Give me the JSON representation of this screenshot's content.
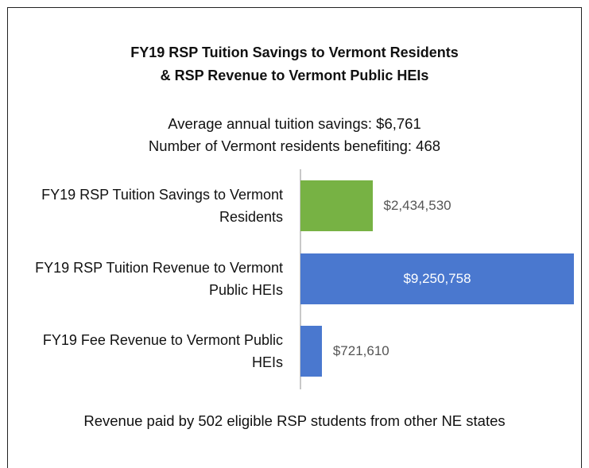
{
  "chart_data": {
    "type": "bar",
    "orientation": "horizontal",
    "title": [
      "FY19 RSP Tuition Savings to Vermont Residents",
      "& RSP Revenue to Vermont Public HEIs"
    ],
    "subtitle": [
      "Average annual tuition savings: $6,761",
      "Number of Vermont residents benefiting: 468"
    ],
    "categories": [
      "FY19 RSP Tuition Savings to Vermont Residents",
      "FY19 RSP Tuition Revenue to Vermont Public HEIs",
      "FY19 Fee Revenue to Vermont Public HEIs"
    ],
    "values": [
      2434530,
      9250758,
      721610
    ],
    "value_labels": [
      "$2,434,530",
      "$9,250,758",
      "$721,610"
    ],
    "colors": [
      "#77b244",
      "#4a78cf",
      "#4a78cf"
    ],
    "xlim": [
      0,
      9250758
    ],
    "note": "Revenue paid by 502 eligible RSP students from other NE states"
  }
}
